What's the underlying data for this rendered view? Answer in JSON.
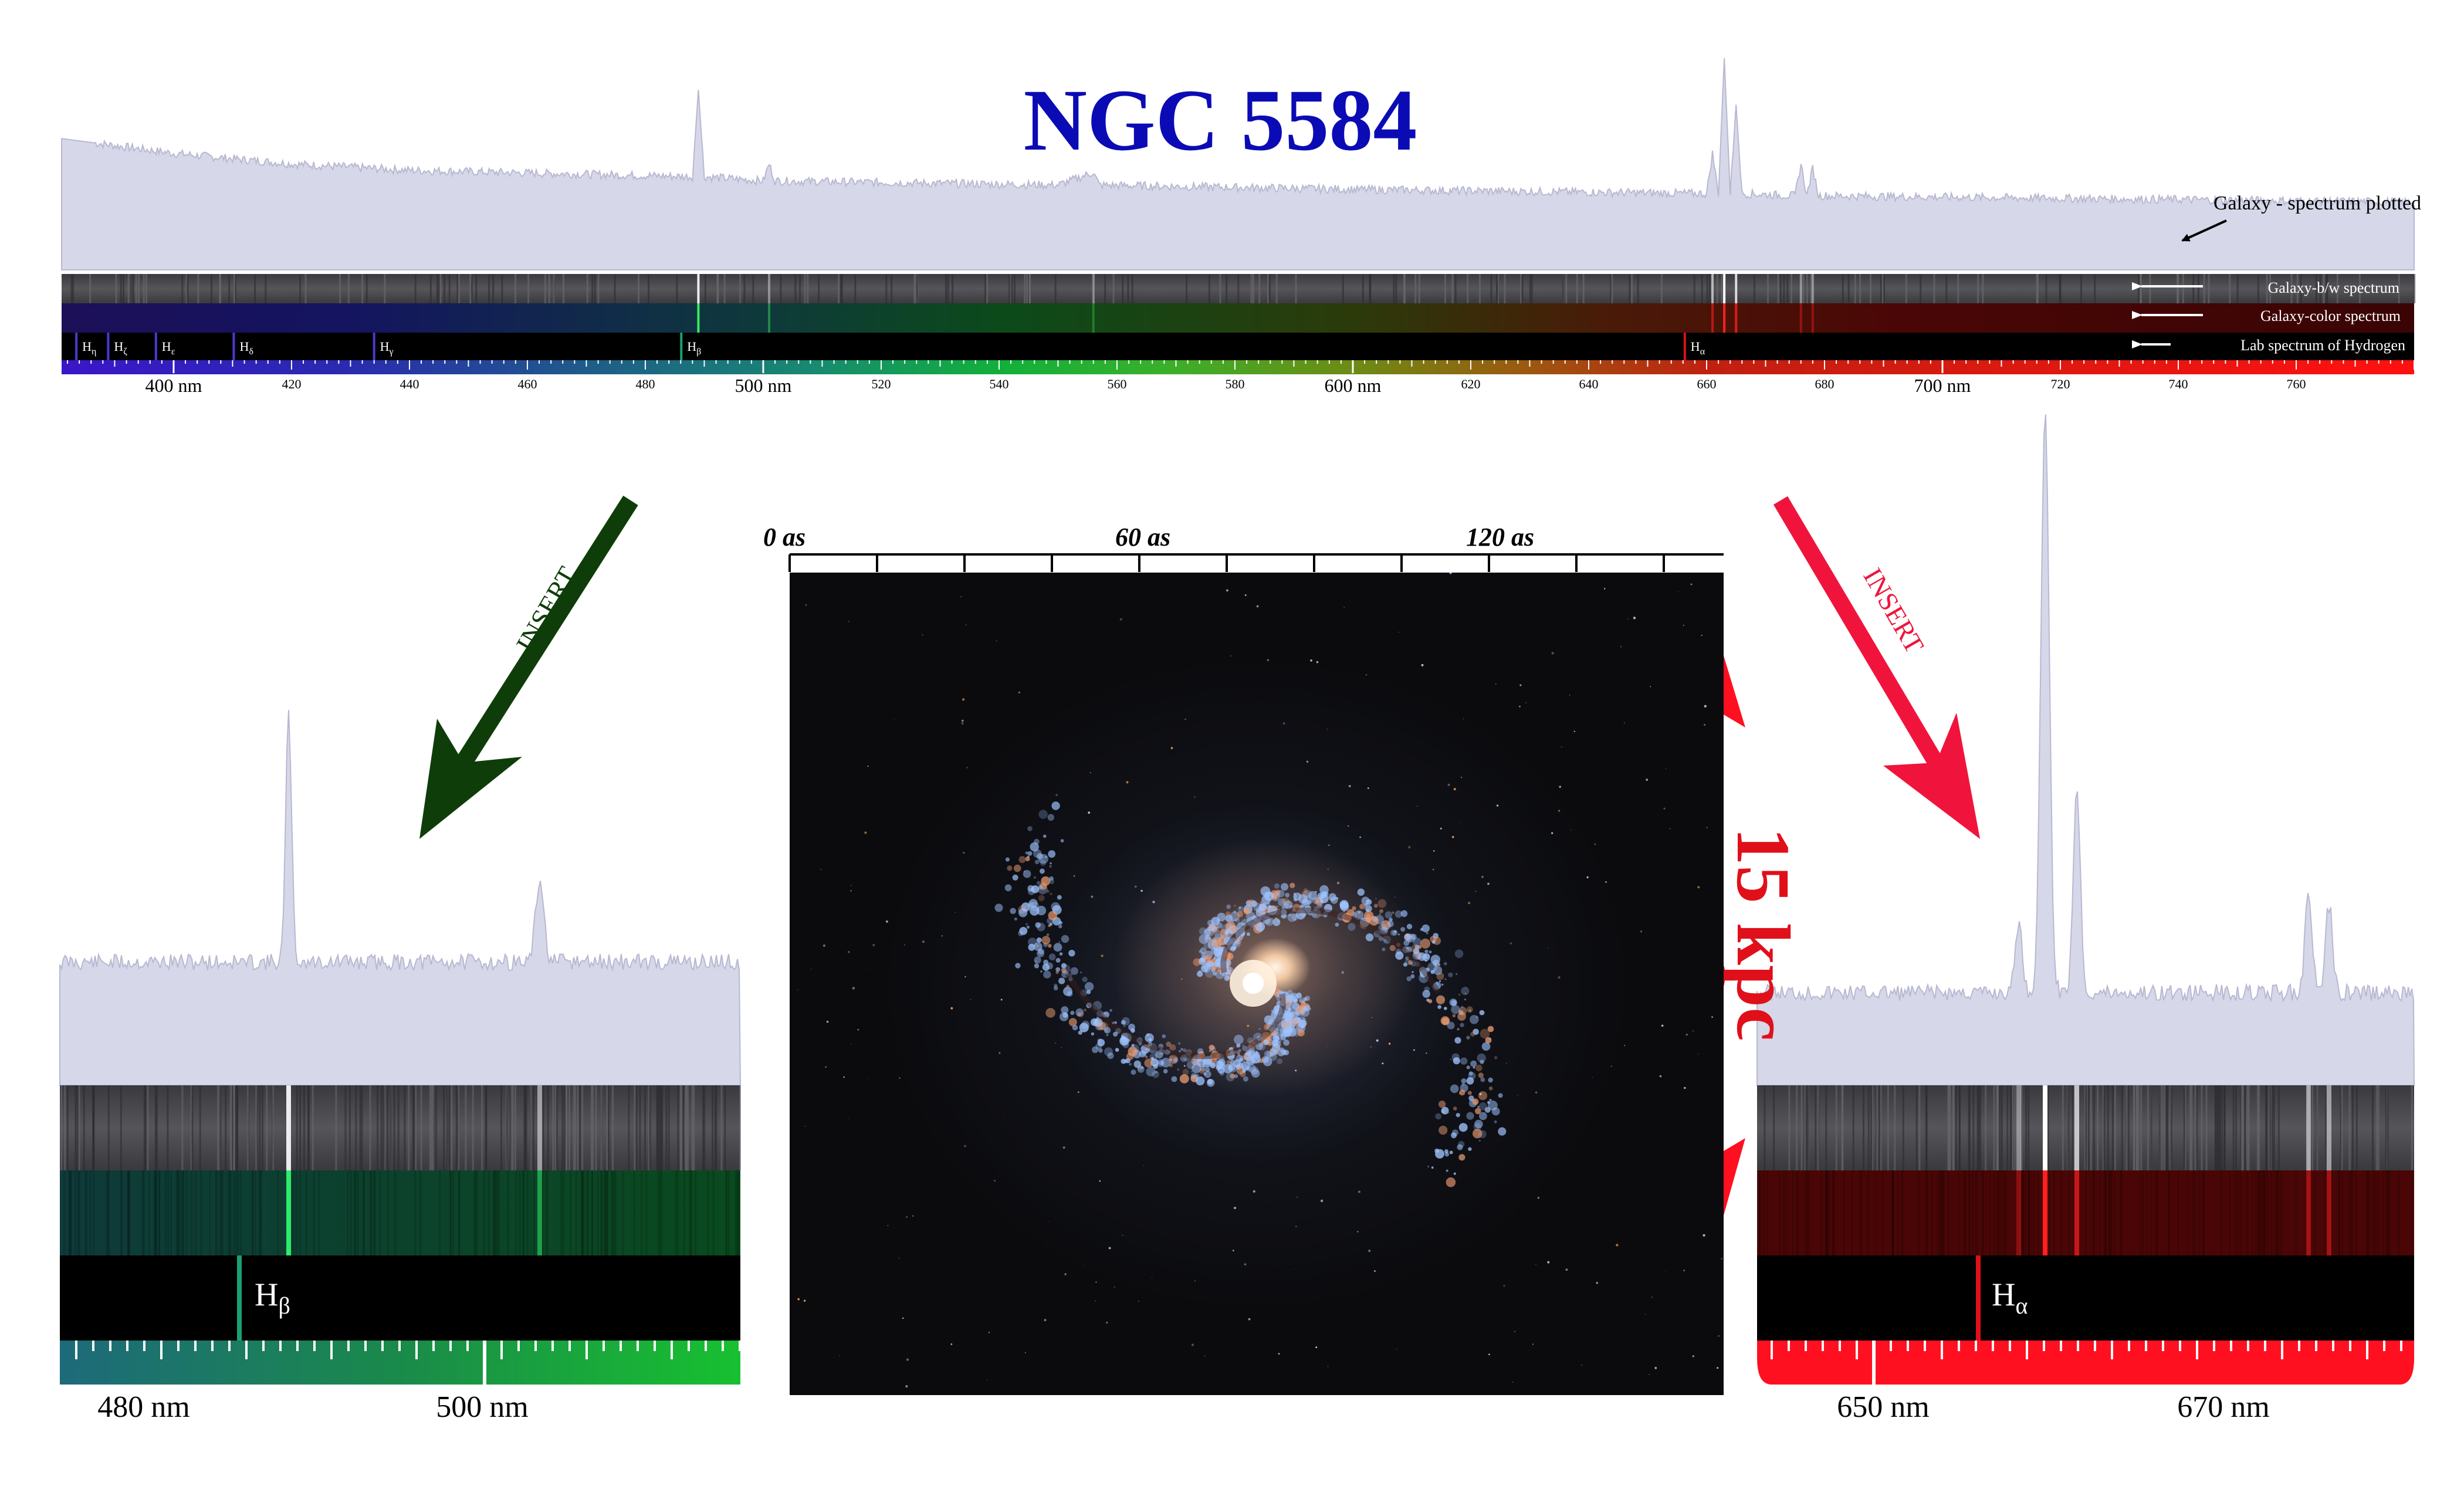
{
  "title": "NGC 5584",
  "colors": {
    "title": "#0b0bb5",
    "spectrum_fill": "#d6d7e8",
    "hydrogen_line_red": "#e0101a",
    "hydrogen_line_green": "#1aa070",
    "arrow_green": "#0f3d0a",
    "arrow_red": "#f0143c",
    "scale_red": "#ff1020"
  },
  "main_panel": {
    "annotations": {
      "plotted": "Galaxy - spectrum plotted",
      "bw": "Galaxy-b/w spectrum",
      "color": "Galaxy-color spectrum",
      "lab": "Lab spectrum of Hydrogen"
    },
    "hydrogen_lines": [
      {
        "label": "η",
        "wavelength_nm": 383.5
      },
      {
        "label": "ζ",
        "wavelength_nm": 388.9
      },
      {
        "label": "ε",
        "wavelength_nm": 397.0
      },
      {
        "label": "δ",
        "wavelength_nm": 410.2
      },
      {
        "label": "γ",
        "wavelength_nm": 434.0
      },
      {
        "label": "β",
        "wavelength_nm": 486.1
      },
      {
        "label": "α",
        "wavelength_nm": 656.3
      }
    ],
    "axis_major_labels": [
      "400 nm",
      "500 nm",
      "600 nm",
      "700 nm"
    ],
    "axis_minor_labels": [
      "420",
      "440",
      "460",
      "480",
      "520",
      "540",
      "560",
      "580",
      "620",
      "640",
      "660",
      "680",
      "720",
      "740",
      "760"
    ]
  },
  "chart_data": {
    "type": "line",
    "x_label": "",
    "xlim": [
      381,
      780
    ],
    "series": [
      {
        "values_nm": [
          [
            381,
            0.62
          ],
          [
            400,
            0.55
          ],
          [
            420,
            0.5
          ],
          [
            440,
            0.47
          ],
          [
            488,
            0.44
          ],
          [
            489,
            0.85
          ],
          [
            490,
            0.44
          ],
          [
            500,
            0.42
          ],
          [
            501,
            0.5
          ],
          [
            502,
            0.42
          ],
          [
            550,
            0.4
          ],
          [
            556,
            0.46
          ],
          [
            557,
            0.4
          ],
          [
            600,
            0.38
          ],
          [
            660,
            0.36
          ],
          [
            661,
            0.55
          ],
          [
            662,
            0.36
          ],
          [
            663,
            1.0
          ],
          [
            664,
            0.36
          ],
          [
            665,
            0.78
          ],
          [
            666,
            0.36
          ],
          [
            675,
            0.35
          ],
          [
            676,
            0.5
          ],
          [
            677,
            0.35
          ],
          [
            678,
            0.48
          ],
          [
            679,
            0.35
          ],
          [
            780,
            0.32
          ]
        ]
      }
    ]
  },
  "insert_left": {
    "label": "INSERT",
    "line_label": "H",
    "line_sub": "β",
    "axis_labels": [
      "480 nm",
      "500 nm"
    ]
  },
  "insert_right": {
    "label": "INSERT",
    "line_label": "H",
    "line_sub": "α",
    "axis_labels": [
      "650 nm",
      "670 nm"
    ]
  },
  "image": {
    "scale_labels": [
      "0 as",
      "60 as",
      "120 as"
    ],
    "size_label": "15 kpc"
  }
}
